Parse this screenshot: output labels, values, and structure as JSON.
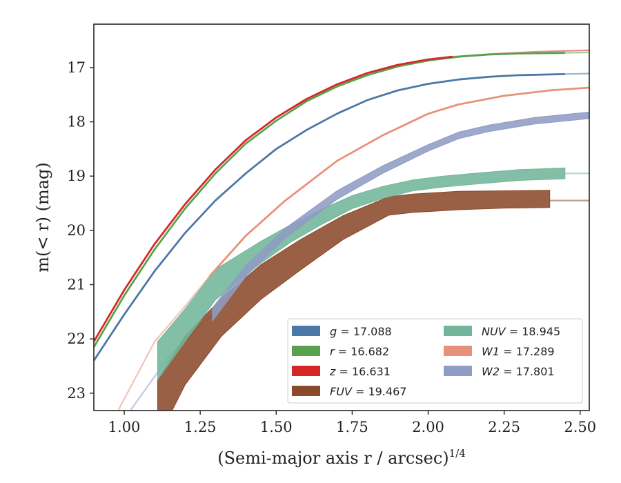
{
  "chart_data": {
    "type": "line",
    "xlabel": "(Semi-major axis r / arcsec)",
    "xlabel_exponent": "1/4",
    "ylabel": "m(< r) (mag)",
    "xlim": [
      0.9,
      2.53
    ],
    "ylim": [
      23.32,
      16.2
    ],
    "y_inverted": true,
    "grid": false,
    "legend_position": "lower-right",
    "xticks": [
      "1.00",
      "1.25",
      "1.50",
      "1.75",
      "2.00",
      "2.25",
      "2.50"
    ],
    "yticks": [
      "17",
      "18",
      "19",
      "20",
      "21",
      "22",
      "23"
    ],
    "series": [
      {
        "name": "g = 17.088",
        "symbol": "g",
        "value": "17.088",
        "color": "#4c78a8",
        "band": false,
        "x": [
          0.9,
          1.0,
          1.1,
          1.2,
          1.3,
          1.4,
          1.5,
          1.6,
          1.7,
          1.8,
          1.9,
          2.0,
          2.1,
          2.2,
          2.3,
          2.45
        ],
        "y": [
          22.4,
          21.55,
          20.75,
          20.05,
          19.45,
          18.95,
          18.5,
          18.15,
          17.85,
          17.6,
          17.42,
          17.3,
          17.22,
          17.17,
          17.14,
          17.12
        ],
        "ext_x": [
          2.45,
          2.53
        ],
        "ext_y": [
          17.12,
          17.11
        ]
      },
      {
        "name": "r = 16.682",
        "symbol": "r",
        "value": "16.682",
        "color": "#59a14f",
        "band": false,
        "x": [
          0.9,
          1.0,
          1.1,
          1.2,
          1.3,
          1.4,
          1.5,
          1.6,
          1.7,
          1.8,
          1.9,
          2.0,
          2.1,
          2.2,
          2.3,
          2.45
        ],
        "y": [
          22.15,
          21.2,
          20.35,
          19.6,
          18.95,
          18.4,
          17.98,
          17.62,
          17.35,
          17.14,
          16.98,
          16.87,
          16.8,
          16.76,
          16.74,
          16.73
        ],
        "ext_x": [
          2.45,
          2.53
        ],
        "ext_y": [
          16.73,
          16.72
        ]
      },
      {
        "name": "z = 16.631",
        "symbol": "z",
        "value": "16.631",
        "color": "#d62728",
        "band": false,
        "x": [
          0.9,
          1.0,
          1.1,
          1.2,
          1.3,
          1.4,
          1.5,
          1.6,
          1.7,
          1.8,
          1.9,
          2.0,
          2.08
        ],
        "y": [
          22.05,
          21.1,
          20.25,
          19.52,
          18.88,
          18.34,
          17.92,
          17.58,
          17.31,
          17.1,
          16.95,
          16.85,
          16.8
        ],
        "ext_x": [
          2.08,
          2.2,
          2.35,
          2.53
        ],
        "ext_y": [
          16.8,
          16.75,
          16.71,
          16.68
        ]
      },
      {
        "name": "FUV = 19.467",
        "symbol": "FUV",
        "value": "19.467",
        "color": "#8b4a2b",
        "band": true,
        "x": [
          1.11,
          1.2,
          1.32,
          1.45,
          1.58,
          1.72,
          1.87,
          1.95,
          2.1,
          2.25,
          2.4
        ],
        "y": [
          23.3,
          22.4,
          21.6,
          20.95,
          20.45,
          19.95,
          19.55,
          19.5,
          19.45,
          19.43,
          19.42
        ],
        "half_width": [
          0.55,
          0.45,
          0.35,
          0.32,
          0.28,
          0.22,
          0.17,
          0.17,
          0.17,
          0.16,
          0.16
        ],
        "ext_x": [
          2.4,
          2.53
        ],
        "ext_y": [
          19.45,
          19.45
        ]
      },
      {
        "name": "NUV = 18.945",
        "symbol": "NUV",
        "value": "18.945",
        "color": "#72b59a",
        "band": true,
        "x": [
          1.11,
          1.2,
          1.3,
          1.45,
          1.55,
          1.65,
          1.75,
          1.85,
          1.95,
          2.05,
          2.15,
          2.3,
          2.45
        ],
        "y": [
          22.4,
          21.75,
          21.0,
          20.4,
          20.05,
          19.75,
          19.48,
          19.3,
          19.17,
          19.1,
          19.05,
          18.98,
          18.95
        ],
        "half_width": [
          0.35,
          0.3,
          0.28,
          0.2,
          0.16,
          0.14,
          0.12,
          0.11,
          0.1,
          0.1,
          0.1,
          0.1,
          0.1
        ],
        "ext_x": [
          2.45,
          2.53
        ],
        "ext_y": [
          18.95,
          18.95
        ]
      },
      {
        "name": "W1 = 17.289",
        "symbol": "W1",
        "value": "17.289",
        "color": "#e8917a",
        "band": false,
        "x": [
          1.28,
          1.4,
          1.53,
          1.7,
          1.85,
          2.0,
          2.1,
          2.25,
          2.4,
          2.53
        ],
        "y": [
          20.85,
          20.1,
          19.45,
          18.72,
          18.25,
          17.85,
          17.68,
          17.52,
          17.42,
          17.37
        ],
        "ext_x": [
          0.98,
          1.1,
          1.2,
          1.28
        ],
        "ext_y": [
          23.32,
          22.05,
          21.4,
          20.85
        ]
      },
      {
        "name": "W2 = 17.801",
        "symbol": "W2",
        "value": "17.801",
        "color": "#8f9cc4",
        "band": true,
        "x": [
          1.29,
          1.4,
          1.53,
          1.7,
          1.85,
          2.0,
          2.1,
          2.2,
          2.35,
          2.53
        ],
        "y": [
          21.55,
          20.75,
          20.05,
          19.35,
          18.88,
          18.48,
          18.25,
          18.12,
          17.98,
          17.88
        ],
        "half_width": [
          0.12,
          0.1,
          0.09,
          0.08,
          0.07,
          0.06,
          0.06,
          0.06,
          0.06,
          0.06
        ],
        "ext_x": [
          1.02,
          1.15,
          1.29
        ],
        "ext_y": [
          23.32,
          22.3,
          21.55
        ]
      }
    ]
  }
}
